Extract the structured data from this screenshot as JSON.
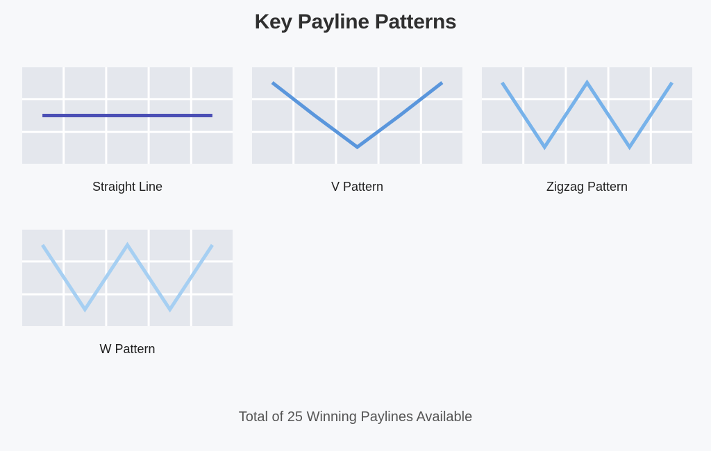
{
  "title": "Key Payline Patterns",
  "grid": {
    "reels": 5,
    "rows": 3
  },
  "colors": {
    "cell": "#e4e7ed",
    "background": "#f7f8fa"
  },
  "patterns": [
    {
      "label": "Straight Line",
      "rows": [
        1,
        1,
        1,
        1,
        1
      ],
      "color": "#4b4fb5"
    },
    {
      "label": "V Pattern",
      "rows": [
        0,
        1,
        2,
        1,
        0
      ],
      "color": "#5a96dc"
    },
    {
      "label": "Zigzag Pattern",
      "rows": [
        0,
        2,
        0,
        2,
        0
      ],
      "color": "#77b2ea"
    },
    {
      "label": "W Pattern",
      "rows": [
        0,
        2,
        0,
        2,
        0
      ],
      "color": "#a6cff2"
    }
  ],
  "footer": "Total of 25 Winning Paylines Available"
}
